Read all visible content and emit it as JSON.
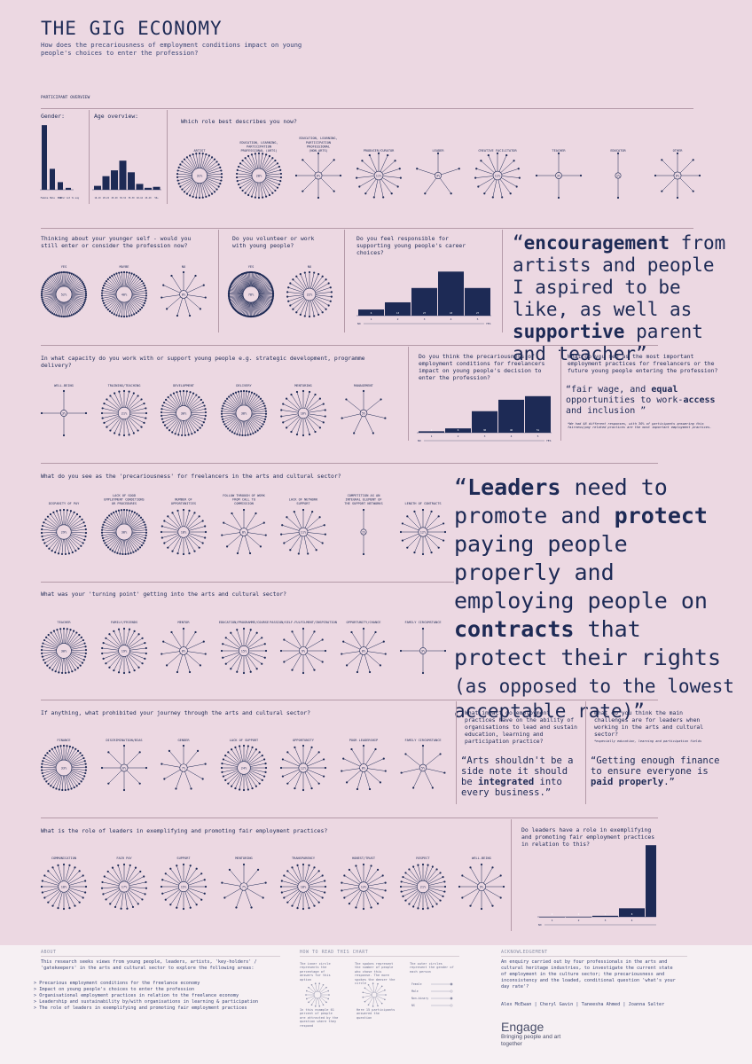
{
  "header": {
    "title": "THE GIG ECONOMY",
    "subtitle": "How does the precariousness of employment conditions impact on young people's choices to enter the profession?"
  },
  "participant_overview": {
    "label": "PARTICIPANT OVERVIEW",
    "gender_label": "Gender:",
    "age_label": "Age overview:",
    "role_question": "Which role best describes you now?"
  },
  "questions": {
    "younger_self": "Thinking about your younger self - would you still enter or consider the profession now?",
    "volunteer": "Do you volunteer or work with young people?",
    "responsible": "Do you feel responsible for supporting young people's career choices?",
    "capacity": "In what capacity do you work with or support young people e.g. strategic development, programme delivery?",
    "precarious_impact": "Do you think the precariousness of employment conditions for freelancers impact on young people's decision to enter the profession?",
    "practices": "What do you see as the most important employment practices for freelancers or the future young people entering the profession?",
    "precariousness": "What do you see as the 'precariousness' for freelancers in the arts and cultural sector?",
    "turning_point": "What was your 'turning point' getting into the arts and cultural sector?",
    "prohibited": "If anything, what prohibited your journey through the arts and cultural sector?",
    "impact_orgs": "What impact do employment practices have on the ability of organisations to lead and sustain education, learning and participation practice?",
    "challenges": "What do you think the main challenges are for leaders when working in the arts and cultural sector?",
    "challenges_note": "*especially education, learning and participation fields",
    "leaders_role": "What is the role of leaders in exemplifying and promoting fair employment practices?",
    "leaders_have_role": "Do leaders have a role in exemplifying and promoting fair employment practices in relation to this?"
  },
  "quotes": {
    "q1": {
      "pre": "“",
      "b1": "encouragement",
      "t1": " from artists and people I aspired to be like, as well as ",
      "b2": "supportive",
      "t2": " parent and teacher”"
    },
    "q2": {
      "pre": "“fair wage, and ",
      "b1": "equal",
      "t1": " opportunities to work-",
      "b2": "access",
      "t2": " and inclusion ”"
    },
    "q2_note": "*We had 48 different responses, with 30% of participants answering this fairness/pay related practices are the most important employment practices.",
    "q3": {
      "pre": "“",
      "b1": "Leaders",
      "t1": " need to promote and ",
      "b2": "protect",
      "t2": " paying people properly and employing people on ",
      "b3": "contracts",
      "t3": " that protect their rights",
      "t4": "(as opposed to the lowest acceptable rate)”"
    },
    "q4": {
      "pre": "“Arts shouldn't be a side note it should be ",
      "b1": "integrated",
      "t1": " into every business.”"
    },
    "q5": {
      "pre": "“Getting enough finance to ensure everyone is ",
      "b1": "paid properly",
      "t1": ".”"
    }
  },
  "chart_data": [
    {
      "id": "gender",
      "type": "bar",
      "categories": [
        "Female",
        "Male",
        "NB",
        "Prefer not to say"
      ],
      "values": [
        68,
        22,
        8,
        2
      ]
    },
    {
      "id": "age",
      "type": "bar",
      "categories": [
        "16-19",
        "20-24",
        "25-29",
        "30-34",
        "35-39",
        "40-44",
        "45-49",
        "50+"
      ],
      "values": [
        4,
        14,
        20,
        30,
        18,
        6,
        2,
        3
      ]
    },
    {
      "id": "role",
      "type": "radial",
      "categories": [
        "ARTIST",
        "EDUCATION, LEARNING, PARTICIPATION PROFESSIONAL (ARTS)",
        "EDUCATION, LEARNING, PARTICIPATION PROFESSIONAL (NON-ARTS)",
        "PRODUCER/CURATOR",
        "LEADER",
        "CREATIVE FACILITATOR",
        "TEACHER",
        "EDUCATOR",
        "OTHER"
      ],
      "values": [
        31,
        28,
        6,
        11,
        4,
        11,
        3,
        1,
        6
      ],
      "labels": [
        "31%",
        "28%",
        "6%",
        "11%",
        "4%",
        "11%",
        "3%",
        "1%",
        "6%"
      ]
    },
    {
      "id": "younger_self",
      "type": "radial",
      "categories": [
        "YES",
        "MAYBE",
        "NO"
      ],
      "values": [
        52,
        40,
        8
      ],
      "labels": [
        "52%",
        "40%",
        "8%"
      ]
    },
    {
      "id": "volunteer",
      "type": "radial",
      "categories": [
        "YES",
        "NO"
      ],
      "values": [
        78,
        22
      ],
      "labels": [
        "78%",
        "22%"
      ]
    },
    {
      "id": "responsible",
      "type": "bar",
      "categories": [
        "1",
        "2",
        "3",
        "4",
        "5"
      ],
      "values": [
        6,
        13,
        27,
        43,
        27
      ],
      "xlabel_left": "NO",
      "xlabel_right": "YES"
    },
    {
      "id": "capacity",
      "type": "radial",
      "categories": [
        "WELL-BEING",
        "TRAINING/TEACHING",
        "DEVELOPMENT",
        "DELIVERY",
        "MENTORING",
        "MANAGEMENT"
      ],
      "values": [
        3,
        21,
        30,
        38,
        16,
        5
      ],
      "labels": [
        "3%",
        "21%",
        "30%",
        "38%",
        "16%",
        "5%"
      ]
    },
    {
      "id": "precarious_impact",
      "type": "bar",
      "categories": [
        "1",
        "2",
        "3",
        "4",
        "5"
      ],
      "values": [
        2,
        6,
        30,
        46,
        51
      ],
      "xlabel_left": "NO",
      "xlabel_right": "YES"
    },
    {
      "id": "precariousness",
      "type": "radial",
      "categories": [
        "DISPARITY OF PAY",
        "LACK OF GOOD EMPLOYMENT CONDITIONS OR PROCEDURES",
        "NUMBER OF OPPORTUNITIES",
        "FOLLOW THROUGH OF WORK FROM CALL TO COMMISSION",
        "LACK OF NETWORK SUPPORT",
        "COMPETITION AS AN INTEGRAL ELEMENT OF THE SUPPORT NETWORKS",
        "LENGTH OF CONTRACTS"
      ],
      "values": [
        29,
        38,
        18,
        8,
        11,
        1,
        12
      ],
      "labels": [
        "29%",
        "38%",
        "18%",
        "8%",
        "11%",
        "1%",
        "12%"
      ]
    },
    {
      "id": "turning_point",
      "type": "radial",
      "categories": [
        "TEACHER",
        "FAMILY/FRIENDS",
        "MENTOR",
        "EDUCATION/PROGRAMME/COURSE",
        "PASSION/SELF-FULFILMENT/INSPIRATION",
        "OPPORTUNITY/CHANCE",
        "FAMILY CIRCUMSTANCE"
      ],
      "values": [
        30,
        19,
        8,
        15,
        9,
        8,
        3
      ],
      "labels": [
        "30%",
        "19%",
        "8%",
        "15%",
        "9%",
        "8%",
        "3%"
      ]
    },
    {
      "id": "prohibited",
      "type": "radial",
      "categories": [
        "FINANCE",
        "DISCRIMINATION/BIAS",
        "GENDER",
        "LACK OF SUPPORT",
        "OPPORTUNITY",
        "POOR LEADERSHIP",
        "FAMILY CIRCUMSTANCE"
      ],
      "values": [
        33,
        6,
        7,
        24,
        12,
        8,
        5
      ],
      "labels": [
        "33%",
        "6%",
        "7%",
        "24%",
        "12%",
        "8%",
        "5%"
      ]
    },
    {
      "id": "leaders_role",
      "type": "radial",
      "categories": [
        "COMMUNICATION",
        "FAIR PAY",
        "SUPPORT",
        "MENTORING",
        "TRANSPARENCY",
        "HONEST/TRUST",
        "RESPECT",
        "WELL-BEING"
      ],
      "values": [
        18,
        17,
        15,
        7,
        18,
        13,
        21,
        9
      ],
      "labels": [
        "18%",
        "17%",
        "15%",
        "7%",
        "18%",
        "13%",
        "21%",
        "9%"
      ]
    },
    {
      "id": "leaders_have_role",
      "type": "bar",
      "categories": [
        "1",
        "2",
        "3",
        "4",
        "5"
      ],
      "values": [
        0,
        0,
        1,
        8,
        67
      ],
      "xlabel_left": "NO",
      "xlabel_right": "YES"
    }
  ],
  "footer": {
    "about_head": "ABOUT",
    "about_intro": "This research seeks views from young people, leaders, artists, 'key-holders' / 'gatekeepers' in the arts and cultural sector to explore the following areas:",
    "about_items": [
      "> Precarious employment conditions for the freelance economy",
      "> Impact on young people's choices to enter the profession",
      "> Organisational employment practices in relation to the freelance economy",
      "> Leadership and sustainability by/with organisations in learning & participation",
      "> The role of leaders in exemplifying and promoting fair employment practices"
    ],
    "how_head": "HOW TO READ THIS CHART",
    "how_a": "The inner circle represents the percentage of answers for this option",
    "how_b": "The spokes represent the number of people who chose this response. The more spokes the denser the circle",
    "how_c": "The outer circles represent the gender of each person",
    "how_d": "In this example 61 percent of people are attracted by the question where they respond",
    "how_e": "Here 15 participants answered the question",
    "legend_items": [
      "Female",
      "Male",
      "Non-binary",
      "NS"
    ],
    "ack_head": "ACKNOWLEDGEMENT",
    "ack_text": "An enquiry carried out by four professionals in the arts and cultural heritage industries, to investigate the current state of employment in the culture sector; the precariousness and inconsistency and the loaded, conditional question 'what's your day rate'?",
    "authors": "Alex McEwan  |  Cheryl Gavin  |  Taneesha Ahmed  |  Joanna Salter",
    "brand": "Engage",
    "brand_tag": "Bringing people and art together"
  },
  "colors": {
    "background": "#ecd8e2",
    "ink": "#1d2a55",
    "rule": "#b49aa8"
  }
}
